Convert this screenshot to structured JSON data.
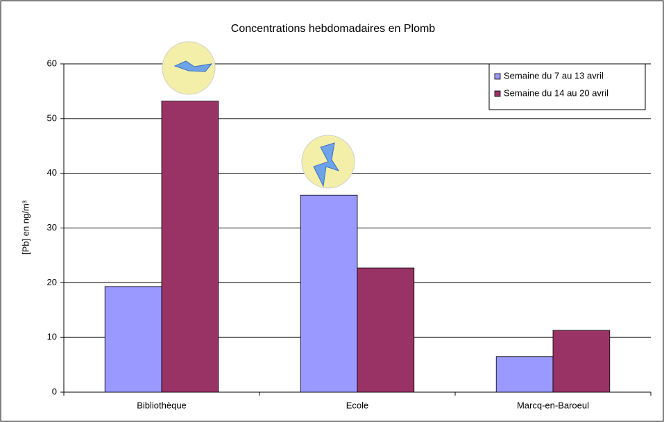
{
  "chart_data": {
    "type": "bar",
    "title": "Concentrations hebdomadaires en Plomb",
    "y_label": "[Pb] en ng/m³",
    "categories": [
      "Bibliothèque",
      "Ecole",
      "Marcq-en-Baroeul"
    ],
    "series": [
      {
        "name": "Semaine du 7 au 13 avril",
        "color": "#9999ff",
        "values": [
          19.3,
          36,
          6.5
        ]
      },
      {
        "name": "Semaine du 14 au 20 avril",
        "color": "#993366",
        "values": [
          53.2,
          22.7,
          11.3
        ]
      }
    ],
    "ylim": [
      0,
      60
    ],
    "yticks": [
      0,
      10,
      20,
      30,
      40,
      50,
      60
    ],
    "grid": true,
    "legend": "top-right"
  }
}
